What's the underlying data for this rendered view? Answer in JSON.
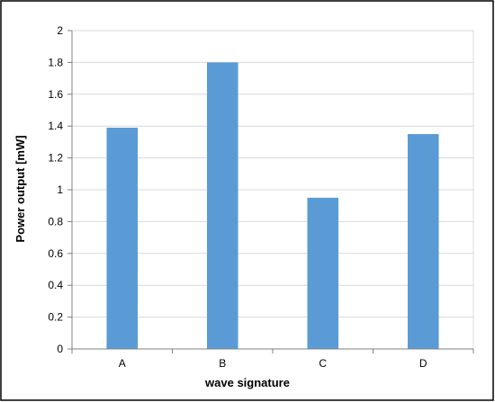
{
  "chart_data": {
    "type": "bar",
    "categories": [
      "A",
      "B",
      "C",
      "D"
    ],
    "values": [
      1.39,
      1.8,
      0.95,
      1.35
    ],
    "xlabel": "wave signature",
    "ylabel": "Power output [mW]",
    "ylim": [
      0,
      2
    ],
    "yticks": [
      0,
      0.2,
      0.4,
      0.6,
      0.8,
      1,
      1.2,
      1.4,
      1.6,
      1.8,
      2
    ],
    "ytick_labels": [
      "0",
      "0.2",
      "0.4",
      "0.6",
      "0.8",
      "1",
      "1.2",
      "1.4",
      "1.6",
      "1.8",
      "2"
    ],
    "grid": true,
    "bar_color": "#5b9bd5",
    "grid_color": "#d9d9d9",
    "axis_color": "#808080",
    "border_color": "#000000"
  }
}
